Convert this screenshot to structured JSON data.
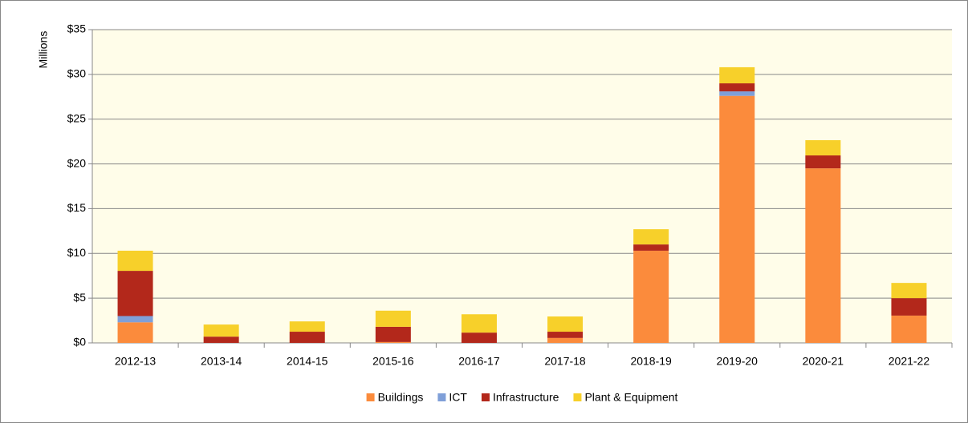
{
  "chart_data": {
    "type": "stacked_bar",
    "y_label": "Millions",
    "categories": [
      "2012-13",
      "2013-14",
      "2014-15",
      "2015-16",
      "2016-17",
      "2017-18",
      "2018-19",
      "2019-20",
      "2020-21",
      "2021-22"
    ],
    "series": [
      {
        "name": "Buildings",
        "color": "#fb8b3c",
        "values": [
          2.3,
          0,
          0,
          0.1,
          0,
          0.55,
          10.3,
          27.6,
          19.5,
          3.05
        ]
      },
      {
        "name": "ICT",
        "color": "#7f9fd8",
        "values": [
          0.7,
          0,
          0,
          0,
          0,
          0,
          0,
          0.5,
          0,
          0
        ]
      },
      {
        "name": "Infrastructure",
        "color": "#b3281b",
        "values": [
          5.05,
          0.7,
          1.25,
          1.7,
          1.15,
          0.7,
          0.7,
          0.9,
          1.45,
          1.95
        ]
      },
      {
        "name": "Plant & Equipment",
        "color": "#f7d02a",
        "values": [
          2.25,
          1.35,
          1.15,
          1.8,
          2.05,
          1.7,
          1.7,
          1.8,
          1.7,
          1.7
        ]
      }
    ],
    "ylim": [
      0,
      35
    ],
    "yticks": [
      {
        "value": 0,
        "label": "$0"
      },
      {
        "value": 5,
        "label": "$5"
      },
      {
        "value": 10,
        "label": "$10"
      },
      {
        "value": 15,
        "label": "$15"
      },
      {
        "value": 20,
        "label": "$20"
      },
      {
        "value": 25,
        "label": "$25"
      },
      {
        "value": 30,
        "label": "$30"
      },
      {
        "value": 35,
        "label": "$35"
      }
    ],
    "grid": true,
    "legend": "bottom"
  }
}
